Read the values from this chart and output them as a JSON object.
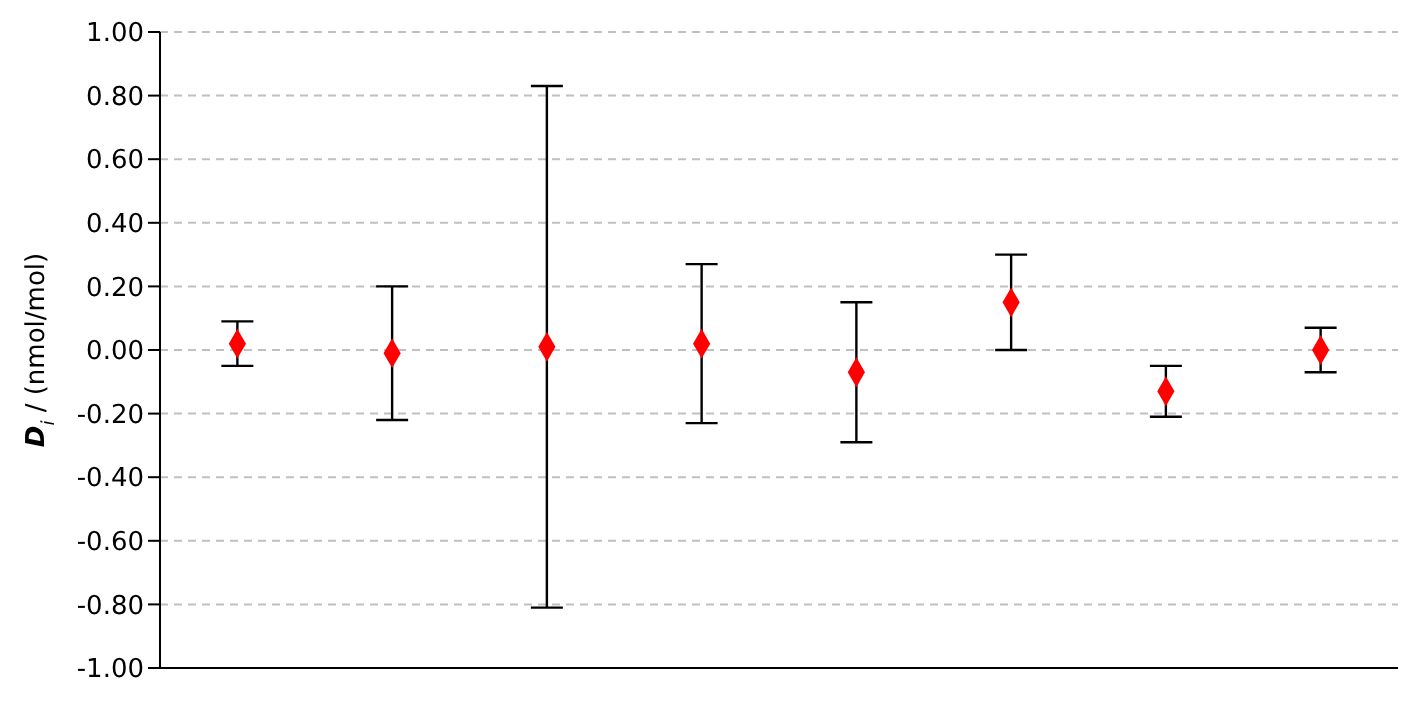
{
  "chart_data": {
    "type": "scatter",
    "ylabel": "D$_{i}$ / (nmol/mol)",
    "categories": [
      null,
      null,
      null,
      null,
      null,
      null,
      null,
      null
    ],
    "series": [
      {
        "color": "#ff0000",
        "values": [
          0.02,
          -0.01,
          0.01,
          0.02,
          -0.07,
          0.15,
          -0.13,
          0.0
        ],
        "errors": [
          0.07,
          0.21,
          0.82,
          0.25,
          0.22,
          0.15,
          0.08,
          0.07
        ]
      }
    ],
    "ylim": [
      -1,
      1
    ],
    "yticks": [
      {
        "value": -1,
        "label": "-1.00"
      },
      {
        "value": -0.8,
        "label": "-0.80"
      },
      {
        "value": -0.6,
        "label": "-0.60"
      },
      {
        "value": -0.4,
        "label": "-0.40"
      },
      {
        "value": -0.2,
        "label": "-0.20"
      },
      {
        "value": 0,
        "label": "0.00"
      },
      {
        "value": 0.2,
        "label": "0.20"
      },
      {
        "value": 0.4,
        "label": "0.40"
      },
      {
        "value": 0.6,
        "label": "0.60"
      },
      {
        "value": 0.8,
        "label": "0.80"
      },
      {
        "value": 1,
        "label": "1.00"
      }
    ],
    "grid": "y",
    "marker": "diamond",
    "legend": false
  }
}
